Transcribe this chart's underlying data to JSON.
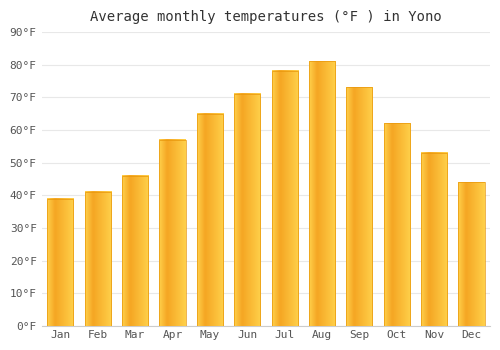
{
  "title": "Average monthly temperatures (°F ) in Yono",
  "months": [
    "Jan",
    "Feb",
    "Mar",
    "Apr",
    "May",
    "Jun",
    "Jul",
    "Aug",
    "Sep",
    "Oct",
    "Nov",
    "Dec"
  ],
  "values": [
    39,
    41,
    46,
    57,
    65,
    71,
    78,
    81,
    73,
    62,
    53,
    44
  ],
  "bar_color_dark": "#F5A623",
  "bar_color_light": "#FFD04A",
  "bar_color_edge": "#E8960A",
  "ylim": [
    0,
    90
  ],
  "yticks": [
    0,
    10,
    20,
    30,
    40,
    50,
    60,
    70,
    80,
    90
  ],
  "ytick_labels": [
    "0°F",
    "10°F",
    "20°F",
    "30°F",
    "40°F",
    "50°F",
    "60°F",
    "70°F",
    "80°F",
    "90°F"
  ],
  "background_color": "#ffffff",
  "grid_color": "#e8e8e8",
  "title_fontsize": 10,
  "tick_fontsize": 8,
  "tick_color": "#555555"
}
